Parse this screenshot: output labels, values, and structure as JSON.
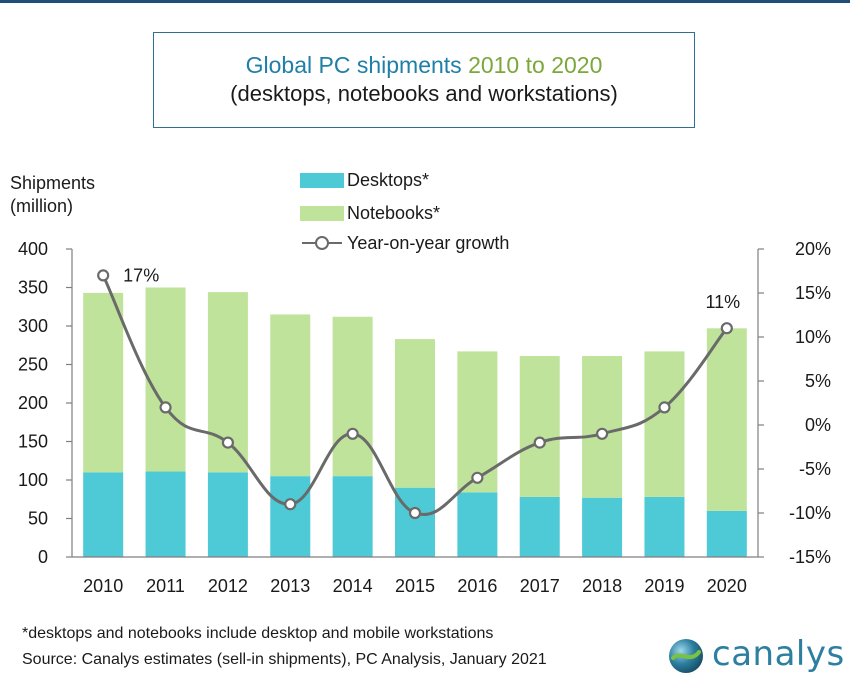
{
  "title": {
    "part1": "Global PC shipments",
    "part2": "2010 to 2020",
    "line2": "(desktops, notebooks and workstations)"
  },
  "axis": {
    "left_label_line1": "Shipments",
    "left_label_line2": "(million)"
  },
  "legend": {
    "desktops": "Desktops*",
    "notebooks": "Notebooks*",
    "growth": "Year-on-year growth"
  },
  "footnote": {
    "line1": "*desktops and notebooks include desktop and mobile workstations",
    "line2": "Source: Canalys estimates (sell-in shipments), PC Analysis, January 2021"
  },
  "logo": {
    "text": "canalys"
  },
  "colors": {
    "desktops": "#4ec9d6",
    "notebooks": "#bfe39a",
    "growth_line": "#6a6a6a",
    "axis": "#7f7f7f"
  },
  "chart_data": {
    "type": "bar",
    "stacked": true,
    "categories": [
      "2010",
      "2011",
      "2012",
      "2013",
      "2014",
      "2015",
      "2016",
      "2017",
      "2018",
      "2019",
      "2020"
    ],
    "series": [
      {
        "name": "Desktops*",
        "values": [
          110,
          111,
          110,
          105,
          105,
          90,
          84,
          78,
          77,
          78,
          60
        ]
      },
      {
        "name": "Notebooks*",
        "values": [
          233,
          239,
          234,
          210,
          207,
          193,
          183,
          183,
          184,
          189,
          237
        ]
      }
    ],
    "line_series": {
      "name": "Year-on-year growth",
      "axis": "right",
      "values": [
        17,
        2,
        -2,
        -9,
        -1,
        -10,
        -6,
        -2,
        -1,
        2,
        11
      ],
      "labels": {
        "0": "17%",
        "10": "11%"
      }
    },
    "ylim": [
      0,
      400
    ],
    "yticks": [
      "0",
      "50",
      "100",
      "150",
      "200",
      "250",
      "300",
      "350",
      "400"
    ],
    "y2lim": [
      -15,
      20
    ],
    "y2ticks": [
      "-15%",
      "-10%",
      "-5%",
      "0%",
      "5%",
      "10%",
      "15%",
      "20%"
    ],
    "grid": false,
    "legend_position": "top-center"
  }
}
